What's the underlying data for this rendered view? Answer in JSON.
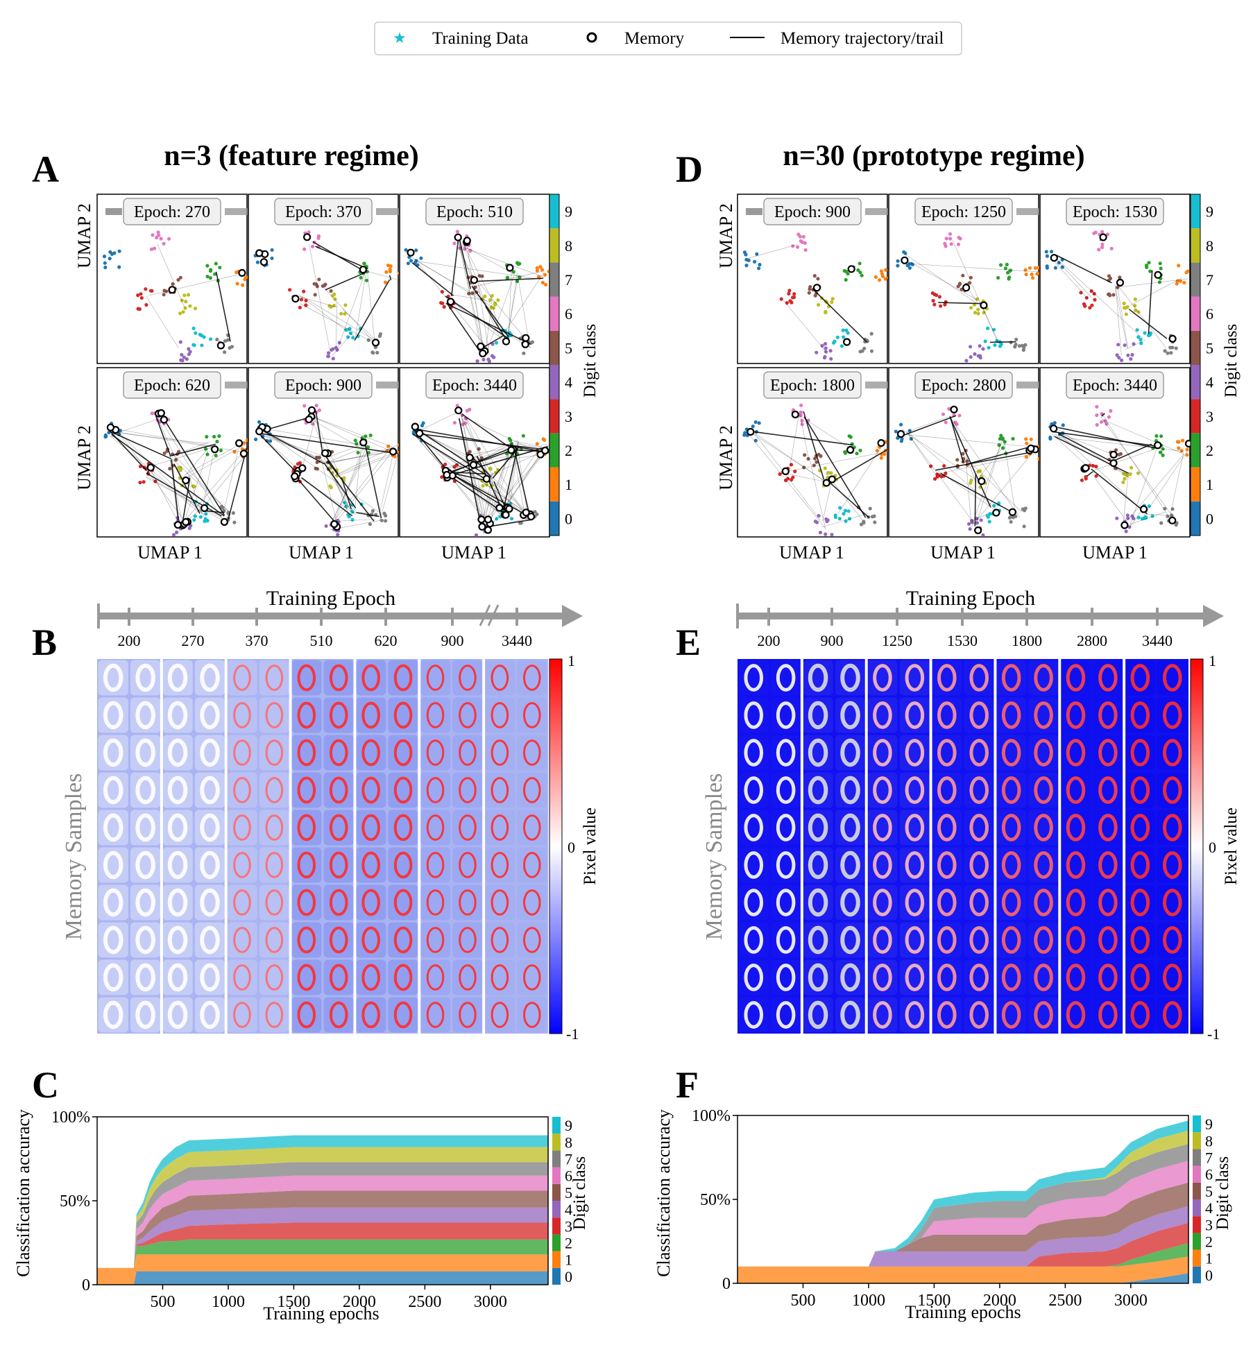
{
  "legend": {
    "items": [
      {
        "label": "Training Data",
        "marker": "star",
        "color": "#17becf"
      },
      {
        "label": "Memory",
        "marker": "circle",
        "color": "#000000"
      },
      {
        "label": "Memory trajectory/trail",
        "marker": "line",
        "color": "#000000"
      }
    ]
  },
  "digit_colors": [
    "#1f77b4",
    "#ff7f0e",
    "#2ca02c",
    "#d62728",
    "#9467bd",
    "#8c564b",
    "#e377c2",
    "#7f7f7f",
    "#bcbd22",
    "#17becf"
  ],
  "left": {
    "title": "n=3 (feature regime)",
    "umap_letter": "A",
    "memory_letter": "B",
    "accuracy_letter": "C",
    "umap_epochs": [
      "Epoch: 270",
      "Epoch: 370",
      "Epoch: 510",
      "Epoch: 620",
      "Epoch: 900",
      "Epoch: 3440"
    ],
    "timeline_epochs": [
      "200",
      "270",
      "370",
      "510",
      "620",
      "900",
      "3440"
    ]
  },
  "right": {
    "title": "n=30 (prototype regime)",
    "umap_letter": "D",
    "memory_letter": "E",
    "accuracy_letter": "F",
    "umap_epochs": [
      "Epoch: 900",
      "Epoch: 1250",
      "Epoch: 1530",
      "Epoch: 1800",
      "Epoch: 2800",
      "Epoch: 3440"
    ],
    "timeline_epochs": [
      "200",
      "900",
      "1250",
      "1530",
      "1800",
      "2800",
      "3440"
    ]
  },
  "labels": {
    "umap_x": "UMAP 1",
    "umap_y": "UMAP 2",
    "digit_class": "Digit class",
    "timeline": "Training Epoch",
    "memory_samples": "Memory Samples",
    "pixel_value": "Pixel value",
    "pixel_ticks": [
      "1",
      "0",
      "-1"
    ],
    "accuracy_x": "Training epochs",
    "accuracy_y": "Classification accuracy",
    "digit_ticks": [
      "0",
      "1",
      "2",
      "3",
      "4",
      "5",
      "6",
      "7",
      "8",
      "9"
    ]
  },
  "chart_data": [
    {
      "type": "area",
      "panel": "C",
      "title": "",
      "xlabel": "Training epochs",
      "ylabel": "Classification accuracy",
      "xlim": [
        0,
        3440
      ],
      "ylim": [
        0,
        100
      ],
      "x_ticks": [
        "500",
        "1000",
        "1500",
        "2000",
        "2500",
        "3000"
      ],
      "y_ticks": [
        "0",
        "50%",
        "100%"
      ],
      "x": [
        0,
        280,
        300,
        350,
        400,
        450,
        500,
        600,
        700,
        1000,
        1500,
        2000,
        2500,
        3000,
        3440
      ],
      "series": [
        {
          "name": "0",
          "values": [
            0,
            0,
            8,
            8,
            8,
            8,
            8,
            8,
            8,
            8,
            8,
            8,
            8,
            8,
            8
          ]
        },
        {
          "name": "1",
          "values": [
            10,
            10,
            10,
            10,
            10,
            10,
            10,
            10,
            10,
            10,
            10,
            10,
            10,
            10,
            10
          ]
        },
        {
          "name": "2",
          "values": [
            0,
            0,
            5,
            5,
            6,
            7,
            8,
            8,
            9,
            9,
            9,
            9,
            9,
            9,
            9
          ]
        },
        {
          "name": "3",
          "values": [
            0,
            0,
            1,
            2,
            3,
            4,
            5,
            7,
            8,
            9,
            10,
            10,
            10,
            10,
            10
          ]
        },
        {
          "name": "4",
          "values": [
            0,
            0,
            2,
            3,
            5,
            6,
            7,
            8,
            9,
            9,
            9,
            9,
            9,
            9,
            9
          ]
        },
        {
          "name": "5",
          "values": [
            0,
            0,
            3,
            4,
            6,
            7,
            8,
            8,
            9,
            9,
            10,
            10,
            10,
            10,
            10
          ]
        },
        {
          "name": "6",
          "values": [
            0,
            0,
            4,
            5,
            7,
            8,
            8,
            9,
            9,
            9,
            9,
            9,
            9,
            9,
            9
          ]
        },
        {
          "name": "7",
          "values": [
            0,
            0,
            4,
            5,
            6,
            7,
            7,
            8,
            8,
            8,
            8,
            8,
            8,
            8,
            8
          ]
        },
        {
          "name": "8",
          "values": [
            0,
            0,
            3,
            4,
            6,
            7,
            8,
            9,
            9,
            9,
            9,
            9,
            9,
            9,
            9
          ]
        },
        {
          "name": "9",
          "values": [
            0,
            0,
            2,
            3,
            4,
            5,
            6,
            7,
            7,
            7,
            7,
            7,
            7,
            7,
            7
          ]
        }
      ]
    },
    {
      "type": "area",
      "panel": "F",
      "title": "",
      "xlabel": "Training epochs",
      "ylabel": "Classification accuracy",
      "xlim": [
        0,
        3440
      ],
      "ylim": [
        0,
        100
      ],
      "x_ticks": [
        "500",
        "1000",
        "1500",
        "2000",
        "2500",
        "3000"
      ],
      "y_ticks": [
        "0",
        "50%",
        "100%"
      ],
      "x": [
        0,
        500,
        1000,
        1050,
        1200,
        1300,
        1400,
        1500,
        1800,
        2000,
        2200,
        2300,
        2500,
        2800,
        2900,
        3000,
        3200,
        3440
      ],
      "series": [
        {
          "name": "0",
          "values": [
            0,
            0,
            0,
            0,
            0,
            0,
            0,
            0,
            0,
            0,
            0,
            0,
            0,
            0,
            0,
            1,
            3,
            6
          ]
        },
        {
          "name": "1",
          "values": [
            10,
            10,
            10,
            10,
            10,
            10,
            10,
            10,
            10,
            10,
            10,
            10,
            10,
            10,
            10,
            10,
            10,
            10
          ]
        },
        {
          "name": "2",
          "values": [
            0,
            0,
            0,
            0,
            0,
            0,
            0,
            0,
            0,
            0,
            0,
            0,
            0,
            0,
            1,
            3,
            6,
            8
          ]
        },
        {
          "name": "3",
          "values": [
            0,
            0,
            0,
            0,
            0,
            0,
            0,
            0,
            0,
            0,
            0,
            6,
            8,
            9,
            10,
            11,
            12,
            12
          ]
        },
        {
          "name": "4",
          "values": [
            0,
            0,
            0,
            9,
            9,
            9,
            9,
            9,
            9,
            9,
            9,
            9,
            9,
            9,
            9,
            10,
            10,
            10
          ]
        },
        {
          "name": "5",
          "values": [
            0,
            0,
            0,
            0,
            0,
            4,
            8,
            10,
            10,
            10,
            10,
            10,
            11,
            12,
            13,
            14,
            14,
            14
          ]
        },
        {
          "name": "6",
          "values": [
            0,
            0,
            0,
            0,
            0,
            0,
            0,
            8,
            10,
            10,
            10,
            11,
            12,
            12,
            13,
            13,
            13,
            13
          ]
        },
        {
          "name": "7",
          "values": [
            0,
            0,
            0,
            0,
            0,
            0,
            5,
            8,
            9,
            10,
            10,
            10,
            10,
            10,
            10,
            10,
            10,
            10
          ]
        },
        {
          "name": "8",
          "values": [
            0,
            0,
            0,
            0,
            0,
            0,
            0,
            0,
            0,
            0,
            0,
            0,
            0,
            1,
            4,
            6,
            8,
            8
          ]
        },
        {
          "name": "9",
          "values": [
            0,
            0,
            0,
            0,
            2,
            4,
            5,
            5,
            6,
            6,
            6,
            6,
            6,
            6,
            6,
            6,
            6,
            6
          ]
        }
      ]
    }
  ]
}
